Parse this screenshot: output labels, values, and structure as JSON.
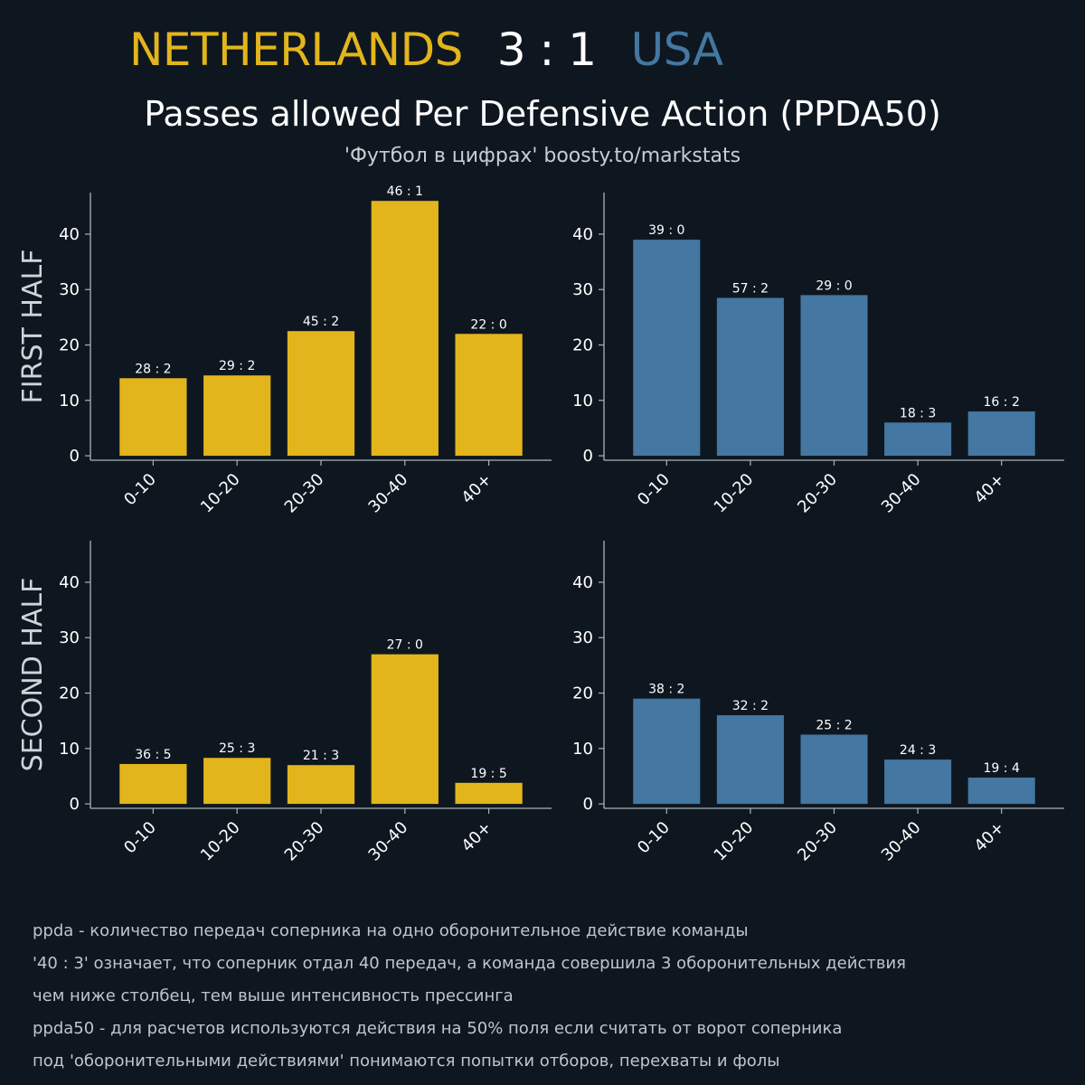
{
  "header": {
    "home_team": "NETHERLANDS",
    "score": "3 : 1",
    "away_team": "USA",
    "title": "Passes allowed Per Defensive Action (PPDA50)",
    "subtitle": "'Футбол в цифрах' boosty.to/markstats"
  },
  "colors": {
    "background": "#0e1720",
    "home": "#e3b51c",
    "away": "#4477a1",
    "axis": "#a8b4b8",
    "text": "#ffffff"
  },
  "row_labels": [
    "FIRST HALF",
    "SECOND HALF"
  ],
  "chart_data": [
    {
      "type": "bar",
      "id": "home-first-half",
      "team": "NETHERLANDS",
      "half": "FIRST HALF",
      "categories": [
        "0-10",
        "10-20",
        "20-30",
        "30-40",
        "40+"
      ],
      "values": [
        14,
        14.5,
        22.5,
        46,
        22
      ],
      "labels": [
        "28 : 2",
        "29 : 2",
        "45 : 2",
        "46 : 1",
        "22 : 0"
      ],
      "yticks": [
        0,
        10,
        20,
        30,
        40
      ],
      "ylim": [
        -0.8,
        47.5
      ],
      "color": "home"
    },
    {
      "type": "bar",
      "id": "away-first-half",
      "team": "USA",
      "half": "FIRST HALF",
      "categories": [
        "0-10",
        "10-20",
        "20-30",
        "30-40",
        "40+"
      ],
      "values": [
        39,
        28.5,
        29,
        6,
        8
      ],
      "labels": [
        "39 : 0",
        "57 : 2",
        "29 : 0",
        "18 : 3",
        "16 : 2"
      ],
      "yticks": [
        0,
        10,
        20,
        30,
        40
      ],
      "ylim": [
        -0.8,
        47.5
      ],
      "color": "away"
    },
    {
      "type": "bar",
      "id": "home-second-half",
      "team": "NETHERLANDS",
      "half": "SECOND HALF",
      "categories": [
        "0-10",
        "10-20",
        "20-30",
        "30-40",
        "40+"
      ],
      "values": [
        7.2,
        8.3,
        7,
        27,
        3.8
      ],
      "labels": [
        "36 : 5",
        "25 : 3",
        "21 : 3",
        "27 : 0",
        "19 : 5"
      ],
      "yticks": [
        0,
        10,
        20,
        30,
        40
      ],
      "ylim": [
        -0.8,
        47.5
      ],
      "color": "home"
    },
    {
      "type": "bar",
      "id": "away-second-half",
      "team": "USA",
      "half": "SECOND HALF",
      "categories": [
        "0-10",
        "10-20",
        "20-30",
        "30-40",
        "40+"
      ],
      "values": [
        19,
        16,
        12.5,
        8,
        4.75
      ],
      "labels": [
        "38 : 2",
        "32 : 2",
        "25 : 2",
        "24 : 3",
        "19 : 4"
      ],
      "yticks": [
        0,
        10,
        20,
        30,
        40
      ],
      "ylim": [
        -0.8,
        47.5
      ],
      "color": "away"
    }
  ],
  "notes": [
    "ppda - количество передач соперника на одно оборонительное действие команды",
    "'40 : 3' означает, что соперник отдал 40 передач, а команда совершила 3 оборонительных действия",
    "чем ниже столбец, тем выше интенсивность прессинга",
    "ppda50 - для расчетов используются действия на 50% поля если считать от ворот соперника",
    "под 'оборонительными действиями' понимаются попытки отборов, перехваты и фолы"
  ]
}
